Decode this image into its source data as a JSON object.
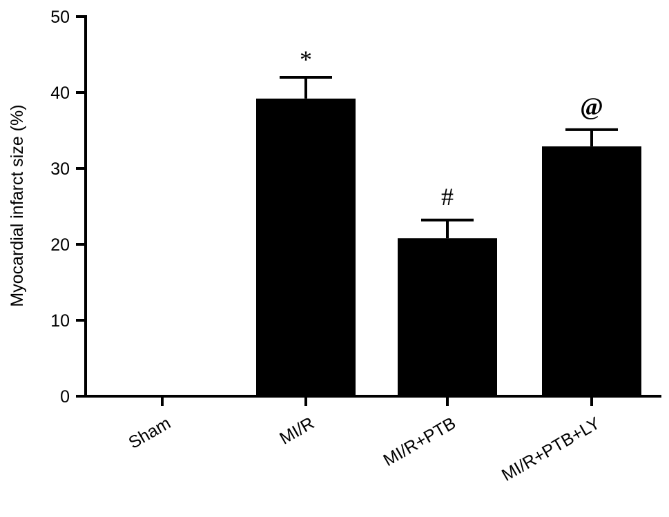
{
  "chart_data": {
    "type": "bar",
    "title": "",
    "xlabel": "",
    "ylabel": "Myocardial infarct size (%)",
    "ylim": [
      0,
      50
    ],
    "yticks": [
      0,
      10,
      20,
      30,
      40,
      50
    ],
    "categories": [
      "Sham",
      "MI/R",
      "MI/R+PTB",
      "MI/R+PTB+LY"
    ],
    "values": [
      0,
      39.2,
      20.8,
      32.9
    ],
    "errors": [
      0,
      2.8,
      2.4,
      2.2
    ],
    "annotations": [
      "",
      "*",
      "#",
      "@"
    ],
    "bar_color": "#000000",
    "grid": false
  }
}
